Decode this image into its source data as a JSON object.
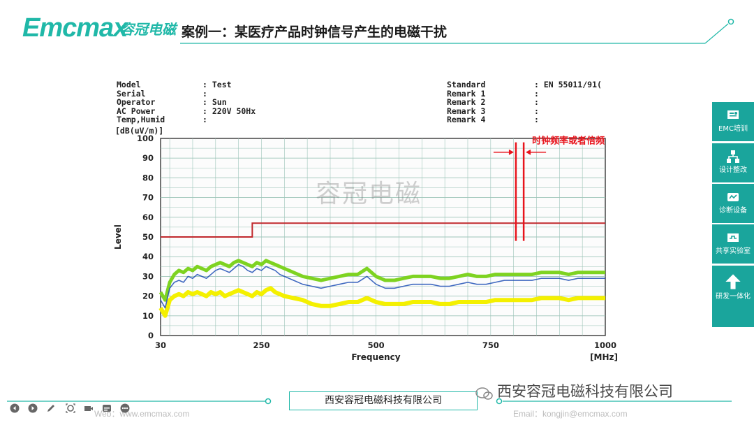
{
  "header": {
    "logo_text": "Emcmax",
    "logo_cn": "容冠电磁",
    "slide_title": "案例一：某医疗产品时钟信号产生的电磁干扰"
  },
  "watermark": "容冠电磁",
  "report": {
    "left_labels": "Model\nSerial\nOperator\nAC Power\nTemp,Humid",
    "left_values": ": Test\n:\n: Sun\n: 220V 50Hx\n:",
    "right_labels": "Standard\nRemark 1\nRemark 2\nRemark 3\nRemark 4",
    "right_values": ": EN 55011/91(\n:\n:\n:\n:",
    "unit": "[dB(uV/m)]"
  },
  "chart_data": {
    "type": "line",
    "ylabel": "Level",
    "xlabel": "Frequency",
    "xunit": "[MHz]",
    "unit": "[dB(uV/m)]",
    "xlim": [
      30,
      1000
    ],
    "ylim": [
      0,
      100
    ],
    "xticks": [
      30,
      250,
      500,
      750,
      1000
    ],
    "yticks": [
      0,
      10,
      20,
      30,
      40,
      50,
      60,
      70,
      80,
      90,
      100
    ],
    "grid": true,
    "limit_line": {
      "color": "#c0282c",
      "points": [
        [
          30,
          50
        ],
        [
          230,
          50
        ],
        [
          230,
          57
        ],
        [
          1000,
          57
        ]
      ]
    },
    "clock_harmonics": {
      "color": "#e8141c",
      "x": [
        805,
        822
      ],
      "y_top": 98,
      "y_bottom": 48
    },
    "annotation": "时钟频率或者倍频",
    "series": [
      {
        "color": "#f4f000",
        "values_x": [
          30,
          40,
          50,
          60,
          70,
          80,
          90,
          100,
          110,
          120,
          130,
          140,
          150,
          160,
          170,
          180,
          190,
          200,
          210,
          220,
          230,
          240,
          250,
          260,
          270,
          280,
          290,
          300,
          320,
          340,
          360,
          380,
          400,
          420,
          440,
          460,
          480,
          500,
          520,
          540,
          560,
          580,
          600,
          620,
          640,
          660,
          680,
          700,
          720,
          740,
          760,
          780,
          800,
          820,
          840,
          860,
          880,
          900,
          920,
          940,
          960,
          980,
          1000
        ],
        "values_y": [
          14,
          10,
          18,
          20,
          21,
          20,
          22,
          21,
          22,
          21,
          20,
          22,
          21,
          22,
          20,
          21,
          22,
          23,
          22,
          21,
          20,
          22,
          21,
          23,
          24,
          22,
          21,
          20,
          19,
          18,
          16,
          15,
          15,
          16,
          17,
          17,
          19,
          17,
          16,
          16,
          16,
          17,
          17,
          17,
          16,
          16,
          17,
          17,
          17,
          17,
          18,
          18,
          18,
          18,
          18,
          19,
          19,
          19,
          18,
          19,
          19,
          19,
          19
        ]
      },
      {
        "color": "#7ed321",
        "values_x": [
          30,
          40,
          50,
          60,
          70,
          80,
          90,
          100,
          110,
          120,
          130,
          140,
          150,
          160,
          170,
          180,
          190,
          200,
          210,
          220,
          230,
          240,
          250,
          260,
          270,
          280,
          290,
          300,
          320,
          340,
          360,
          380,
          400,
          420,
          440,
          460,
          480,
          500,
          520,
          540,
          560,
          580,
          600,
          620,
          640,
          660,
          680,
          700,
          720,
          740,
          760,
          780,
          800,
          820,
          840,
          860,
          880,
          900,
          920,
          940,
          960,
          980,
          1000
        ],
        "values_y": [
          22,
          18,
          27,
          31,
          33,
          32,
          34,
          33,
          35,
          34,
          33,
          35,
          36,
          37,
          36,
          35,
          37,
          38,
          37,
          36,
          35,
          37,
          36,
          38,
          37,
          36,
          35,
          34,
          32,
          30,
          29,
          28,
          29,
          30,
          31,
          31,
          34,
          30,
          28,
          28,
          29,
          30,
          30,
          30,
          29,
          29,
          30,
          31,
          30,
          30,
          31,
          31,
          31,
          31,
          31,
          32,
          32,
          32,
          31,
          32,
          32,
          32,
          32
        ]
      },
      {
        "color": "#1f4fb5",
        "values_x": [
          30,
          40,
          50,
          60,
          70,
          80,
          90,
          100,
          110,
          120,
          130,
          140,
          150,
          160,
          170,
          180,
          190,
          200,
          210,
          220,
          230,
          240,
          250,
          260,
          270,
          280,
          290,
          300,
          320,
          340,
          360,
          380,
          400,
          420,
          440,
          460,
          480,
          500,
          520,
          540,
          560,
          580,
          600,
          620,
          640,
          660,
          680,
          700,
          720,
          740,
          760,
          780,
          800,
          820,
          840,
          860,
          880,
          900,
          920,
          940,
          960,
          980,
          1000
        ],
        "values_y": [
          18,
          14,
          24,
          27,
          28,
          27,
          30,
          29,
          31,
          30,
          29,
          31,
          33,
          34,
          33,
          32,
          34,
          36,
          35,
          33,
          32,
          34,
          33,
          35,
          34,
          33,
          31,
          30,
          28,
          26,
          25,
          24,
          25,
          26,
          27,
          27,
          30,
          26,
          24,
          24,
          25,
          26,
          26,
          26,
          25,
          25,
          26,
          27,
          26,
          26,
          27,
          28,
          28,
          28,
          28,
          29,
          29,
          29,
          28,
          29,
          29,
          29,
          29
        ]
      }
    ]
  },
  "sidebar": [
    {
      "label": "EMC培训",
      "icon": "certificate-icon"
    },
    {
      "label": "设计整改",
      "icon": "network-icon"
    },
    {
      "label": "诊断设备",
      "icon": "device-icon"
    },
    {
      "label": "共享实验室",
      "icon": "lab-icon"
    },
    {
      "label": "研发一体化",
      "icon": "arrow-up-icon"
    }
  ],
  "footer": {
    "web": "Web：www.emcmax.com",
    "company": "西安容冠电磁科技有限公司",
    "wechat": "西安容冠电磁科技有限公司",
    "email": "Email：kongjin@emcmax.com"
  }
}
